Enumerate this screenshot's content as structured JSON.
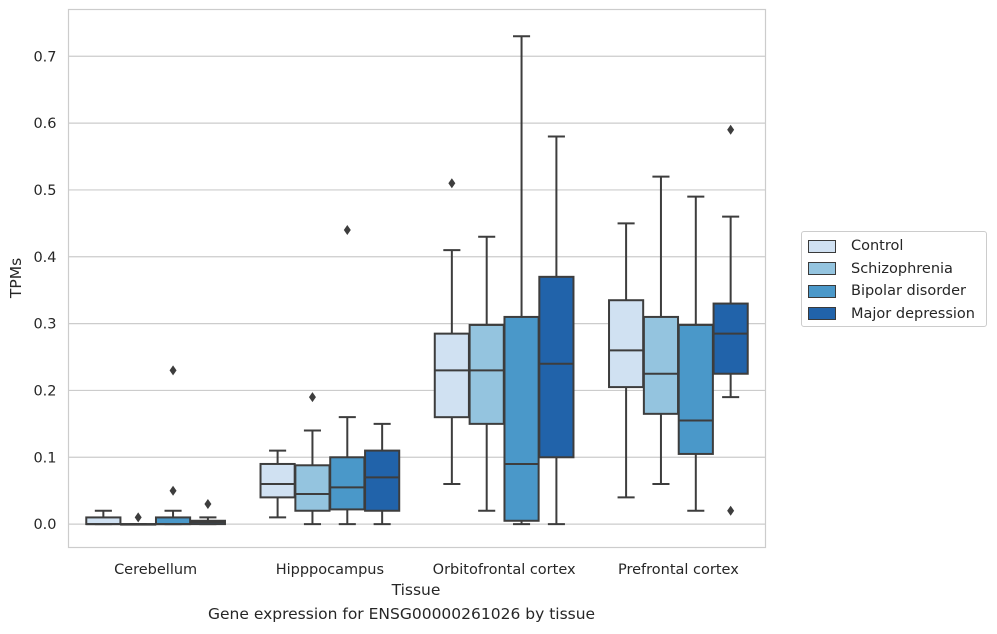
{
  "caption": "Gene expression for ENSG00000261026 by tissue",
  "chart_data": {
    "type": "box",
    "title": "",
    "xlabel": "Tissue",
    "ylabel": "TPMs",
    "ylim": [
      -0.035,
      0.77
    ],
    "yticks": [
      "0.0",
      "0.1",
      "0.2",
      "0.3",
      "0.4",
      "0.5",
      "0.6",
      "0.7"
    ],
    "grid": "horizontal",
    "legend_position": "center-right",
    "categories": [
      "Cerebellum",
      "Hipppocampus",
      "Orbitofrontal cortex",
      "Prefrontal cortex"
    ],
    "series": [
      {
        "name": "Control",
        "color": "#d0e1f2",
        "boxes": [
          {
            "q1": 0.0,
            "median": 0.0,
            "q3": 0.01,
            "whisker_low": 0.0,
            "whisker_high": 0.02,
            "outliers": []
          },
          {
            "q1": 0.04,
            "median": 0.06,
            "q3": 0.09,
            "whisker_low": 0.01,
            "whisker_high": 0.11,
            "outliers": []
          },
          {
            "q1": 0.16,
            "median": 0.23,
            "q3": 0.285,
            "whisker_low": 0.06,
            "whisker_high": 0.41,
            "outliers": [
              0.51
            ]
          },
          {
            "q1": 0.205,
            "median": 0.26,
            "q3": 0.335,
            "whisker_low": 0.04,
            "whisker_high": 0.45,
            "outliers": []
          }
        ]
      },
      {
        "name": "Schizophrenia",
        "color": "#94c4df",
        "boxes": [
          {
            "q1": 0.0,
            "median": 0.0,
            "q3": 0.0,
            "whisker_low": 0.0,
            "whisker_high": 0.0,
            "outliers": [
              0.01
            ]
          },
          {
            "q1": 0.02,
            "median": 0.045,
            "q3": 0.088,
            "whisker_low": 0.0,
            "whisker_high": 0.14,
            "outliers": [
              0.19
            ]
          },
          {
            "q1": 0.15,
            "median": 0.23,
            "q3": 0.298,
            "whisker_low": 0.02,
            "whisker_high": 0.43,
            "outliers": []
          },
          {
            "q1": 0.165,
            "median": 0.225,
            "q3": 0.31,
            "whisker_low": 0.06,
            "whisker_high": 0.52,
            "outliers": []
          }
        ]
      },
      {
        "name": "Bipolar disorder",
        "color": "#4a98c9",
        "boxes": [
          {
            "q1": 0.0,
            "median": 0.0,
            "q3": 0.01,
            "whisker_low": 0.0,
            "whisker_high": 0.02,
            "outliers": [
              0.05,
              0.23
            ]
          },
          {
            "q1": 0.022,
            "median": 0.055,
            "q3": 0.1,
            "whisker_low": 0.0,
            "whisker_high": 0.16,
            "outliers": [
              0.44
            ]
          },
          {
            "q1": 0.005,
            "median": 0.09,
            "q3": 0.31,
            "whisker_low": 0.0,
            "whisker_high": 0.73,
            "outliers": []
          },
          {
            "q1": 0.105,
            "median": 0.155,
            "q3": 0.298,
            "whisker_low": 0.02,
            "whisker_high": 0.49,
            "outliers": []
          }
        ]
      },
      {
        "name": "Major depression",
        "color": "#2163aa",
        "boxes": [
          {
            "q1": 0.0,
            "median": 0.003,
            "q3": 0.005,
            "whisker_low": 0.0,
            "whisker_high": 0.01,
            "outliers": [
              0.03
            ]
          },
          {
            "q1": 0.02,
            "median": 0.07,
            "q3": 0.11,
            "whisker_low": 0.0,
            "whisker_high": 0.15,
            "outliers": []
          },
          {
            "q1": 0.1,
            "median": 0.24,
            "q3": 0.37,
            "whisker_low": 0.0,
            "whisker_high": 0.58,
            "outliers": []
          },
          {
            "q1": 0.225,
            "median": 0.285,
            "q3": 0.33,
            "whisker_low": 0.19,
            "whisker_high": 0.46,
            "outliers": [
              0.02,
              0.59
            ]
          }
        ]
      }
    ]
  }
}
